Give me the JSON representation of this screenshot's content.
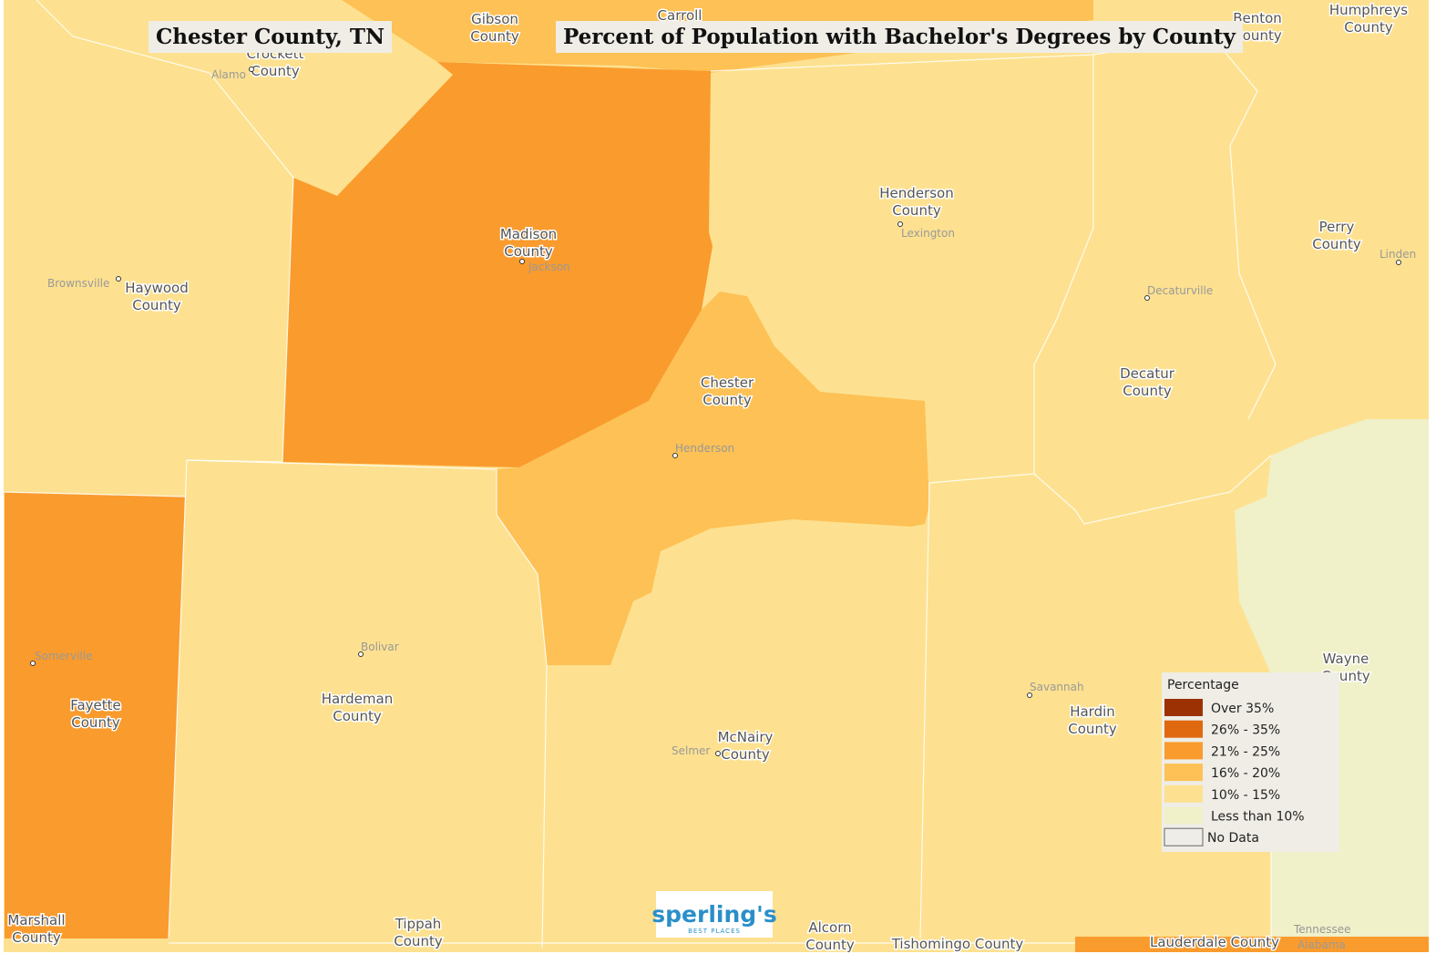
{
  "header": {
    "location": "Chester County, TN",
    "title": "Percent of Population with Bachelor's Degrees by County"
  },
  "counties": [
    {
      "name": [
        "Madison",
        "County"
      ],
      "color": "#fa9b2d"
    },
    {
      "name": [
        "Chester",
        "County"
      ],
      "color": "#fdc155"
    },
    {
      "name": [
        "Gibson",
        "County"
      ],
      "color": "#fdc155"
    },
    {
      "name": [
        "Carroll"
      ],
      "color": "#fdc155"
    },
    {
      "name": [
        "Crockett",
        "County"
      ],
      "color": "#fde190"
    },
    {
      "name": [
        "Haywood",
        "County"
      ],
      "color": "#fde190"
    },
    {
      "name": [
        "Henderson",
        "County"
      ],
      "color": "#fde190"
    },
    {
      "name": [
        "Benton",
        "County"
      ],
      "color": "#fde190"
    },
    {
      "name": [
        "Humphreys",
        "County"
      ],
      "color": "#fde190"
    },
    {
      "name": [
        "Perry",
        "County"
      ],
      "color": "#fde190"
    },
    {
      "name": [
        "Decatur",
        "County"
      ],
      "color": "#fde190"
    },
    {
      "name": [
        "Fayette",
        "County"
      ],
      "color": "#fa9b2d"
    },
    {
      "name": [
        "Hardeman",
        "County"
      ],
      "color": "#fde190"
    },
    {
      "name": [
        "McNairy",
        "County"
      ],
      "color": "#fde190"
    },
    {
      "name": [
        "Hardin",
        "County"
      ],
      "color": "#fde190"
    },
    {
      "name": [
        "Wayne",
        "County"
      ],
      "color": "#f0f0c9"
    },
    {
      "name": [
        "Marshall",
        "County"
      ],
      "color": "#fa9b2d"
    },
    {
      "name": [
        "Tippah",
        "County"
      ],
      "color": "#fde190"
    },
    {
      "name": [
        "Alcorn",
        "County"
      ],
      "color": "#fde190"
    },
    {
      "name": [
        "Tishomingo County"
      ],
      "color": "#fde190"
    },
    {
      "name": [
        "Lauderdale County"
      ],
      "color": "#fa9b2d"
    }
  ],
  "places": [
    "Alamo",
    "Brownsville",
    "Jackson",
    "Lexington",
    "Decaturville",
    "Linden",
    "Henderson",
    "Bolivar",
    "Somerville",
    "Selmer",
    "Savannah",
    "Tennessee",
    "Alabama"
  ],
  "legend": {
    "title": "Percentage",
    "items": [
      {
        "label": "Over 35%",
        "color": "#9c3203"
      },
      {
        "label": "26% - 35%",
        "color": "#e0680f"
      },
      {
        "label": "21% - 25%",
        "color": "#fa9b2d"
      },
      {
        "label": "16% - 20%",
        "color": "#fdc155"
      },
      {
        "label": "10% - 15%",
        "color": "#fde190"
      },
      {
        "label": "Less than 10%",
        "color": "#f0f0c9"
      },
      {
        "label": "No Data",
        "color": "#eeede8"
      }
    ]
  },
  "logo": {
    "brand": "sperling's",
    "tagline": "BEST PLACES"
  }
}
